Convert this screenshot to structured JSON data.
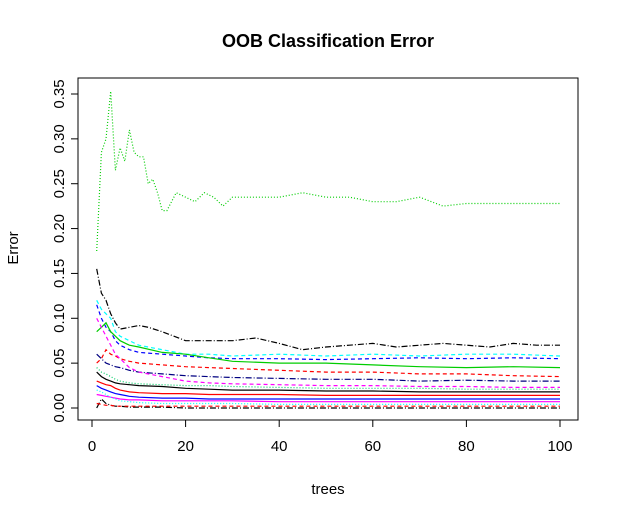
{
  "chart_data": {
    "type": "line",
    "title": "OOB Classification Error",
    "xlabel": "trees",
    "ylabel": "Error",
    "xlim": [
      0,
      100
    ],
    "ylim": [
      0,
      0.35
    ],
    "xticks": [
      0,
      20,
      40,
      60,
      80,
      100
    ],
    "yticks": [
      0.0,
      0.05,
      0.1,
      0.15,
      0.2,
      0.25,
      0.3,
      0.35
    ],
    "xtick_labels": [
      "0",
      "20",
      "40",
      "60",
      "80",
      "100"
    ],
    "ytick_labels": [
      "0.00",
      "0.05",
      "0.10",
      "0.15",
      "0.20",
      "0.25",
      "0.30",
      "0.35"
    ],
    "grid": false,
    "legend": "none",
    "series": [
      {
        "color": "#00cd00",
        "dash": "dotted",
        "x": [
          1,
          2,
          3,
          4,
          5,
          6,
          7,
          8,
          9,
          10,
          11,
          12,
          13,
          14,
          15,
          16,
          18,
          20,
          22,
          24,
          26,
          28,
          30,
          35,
          40,
          45,
          50,
          55,
          60,
          65,
          70,
          75,
          80,
          85,
          90,
          95,
          100
        ],
        "values": [
          0.175,
          0.285,
          0.3,
          0.353,
          0.265,
          0.29,
          0.275,
          0.31,
          0.285,
          0.28,
          0.28,
          0.25,
          0.255,
          0.24,
          0.22,
          0.22,
          0.24,
          0.235,
          0.23,
          0.24,
          0.235,
          0.225,
          0.235,
          0.235,
          0.235,
          0.24,
          0.235,
          0.235,
          0.23,
          0.23,
          0.235,
          0.225,
          0.228,
          0.228,
          0.228,
          0.228,
          0.228
        ]
      },
      {
        "color": "#000000",
        "dash": "dashdot",
        "x": [
          1,
          2,
          3,
          4,
          5,
          6,
          8,
          10,
          12,
          15,
          20,
          25,
          30,
          35,
          40,
          45,
          50,
          55,
          60,
          65,
          70,
          75,
          80,
          85,
          90,
          95,
          100
        ],
        "values": [
          0.155,
          0.128,
          0.12,
          0.105,
          0.095,
          0.088,
          0.09,
          0.092,
          0.09,
          0.085,
          0.075,
          0.075,
          0.075,
          0.078,
          0.072,
          0.065,
          0.068,
          0.07,
          0.072,
          0.068,
          0.07,
          0.072,
          0.07,
          0.068,
          0.072,
          0.07,
          0.07
        ]
      },
      {
        "color": "#00ffff",
        "dash": "dashed",
        "x": [
          1,
          2,
          3,
          4,
          5,
          6,
          8,
          10,
          15,
          20,
          25,
          30,
          40,
          50,
          60,
          70,
          80,
          90,
          100
        ],
        "values": [
          0.12,
          0.11,
          0.105,
          0.1,
          0.085,
          0.08,
          0.075,
          0.07,
          0.065,
          0.06,
          0.06,
          0.058,
          0.06,
          0.058,
          0.06,
          0.058,
          0.06,
          0.06,
          0.058
        ]
      },
      {
        "color": "#0000ff",
        "dash": "dashed",
        "x": [
          1,
          2,
          3,
          4,
          5,
          6,
          8,
          10,
          15,
          20,
          25,
          30,
          40,
          50,
          60,
          70,
          80,
          90,
          100
        ],
        "values": [
          0.115,
          0.1,
          0.09,
          0.085,
          0.075,
          0.07,
          0.065,
          0.062,
          0.06,
          0.058,
          0.056,
          0.055,
          0.055,
          0.054,
          0.055,
          0.056,
          0.055,
          0.056,
          0.055
        ]
      },
      {
        "color": "#00cd00",
        "dash": "solid",
        "x": [
          1,
          2,
          3,
          4,
          5,
          6,
          8,
          10,
          15,
          20,
          25,
          30,
          40,
          50,
          60,
          70,
          80,
          90,
          100
        ],
        "values": [
          0.085,
          0.09,
          0.095,
          0.085,
          0.08,
          0.075,
          0.07,
          0.068,
          0.062,
          0.06,
          0.056,
          0.052,
          0.05,
          0.05,
          0.048,
          0.046,
          0.045,
          0.046,
          0.045
        ]
      },
      {
        "color": "#ff0000",
        "dash": "dashed",
        "x": [
          1,
          2,
          3,
          4,
          5,
          6,
          8,
          10,
          15,
          20,
          25,
          30,
          40,
          50,
          60,
          70,
          80,
          90,
          100
        ],
        "values": [
          0.05,
          0.055,
          0.065,
          0.06,
          0.058,
          0.055,
          0.052,
          0.05,
          0.048,
          0.046,
          0.045,
          0.044,
          0.042,
          0.04,
          0.04,
          0.038,
          0.038,
          0.036,
          0.035
        ]
      },
      {
        "color": "#000080",
        "dash": "dashdot",
        "x": [
          1,
          2,
          3,
          4,
          5,
          6,
          8,
          10,
          15,
          20,
          25,
          30,
          40,
          50,
          60,
          70,
          80,
          90,
          100
        ],
        "values": [
          0.06,
          0.055,
          0.05,
          0.048,
          0.046,
          0.045,
          0.042,
          0.04,
          0.038,
          0.036,
          0.035,
          0.034,
          0.033,
          0.032,
          0.032,
          0.03,
          0.031,
          0.03,
          0.03
        ]
      },
      {
        "color": "#ff00ff",
        "dash": "dashed",
        "x": [
          1,
          2,
          3,
          4,
          5,
          6,
          8,
          10,
          15,
          20,
          25,
          30,
          40,
          50,
          60,
          70,
          80,
          90,
          100
        ],
        "values": [
          0.1,
          0.09,
          0.08,
          0.07,
          0.06,
          0.055,
          0.045,
          0.04,
          0.035,
          0.03,
          0.028,
          0.027,
          0.026,
          0.025,
          0.025,
          0.024,
          0.024,
          0.023,
          0.023
        ]
      },
      {
        "color": "#00cd66",
        "dash": "dotted",
        "x": [
          1,
          2,
          3,
          4,
          5,
          6,
          8,
          10,
          15,
          20,
          25,
          30,
          40,
          50,
          60,
          70,
          80,
          90,
          100
        ],
        "values": [
          0.045,
          0.04,
          0.038,
          0.035,
          0.032,
          0.03,
          0.028,
          0.027,
          0.026,
          0.025,
          0.025,
          0.024,
          0.023,
          0.022,
          0.022,
          0.022,
          0.021,
          0.021,
          0.021
        ]
      },
      {
        "color": "#000000",
        "dash": "solid",
        "x": [
          1,
          2,
          3,
          4,
          5,
          6,
          8,
          10,
          15,
          20,
          25,
          30,
          40,
          50,
          60,
          70,
          80,
          90,
          100
        ],
        "values": [
          0.04,
          0.035,
          0.032,
          0.03,
          0.028,
          0.027,
          0.026,
          0.025,
          0.024,
          0.022,
          0.021,
          0.02,
          0.02,
          0.019,
          0.019,
          0.018,
          0.018,
          0.018,
          0.018
        ]
      },
      {
        "color": "#ff0000",
        "dash": "solid",
        "x": [
          1,
          2,
          3,
          4,
          5,
          6,
          8,
          10,
          15,
          20,
          25,
          30,
          40,
          50,
          60,
          70,
          80,
          90,
          100
        ],
        "values": [
          0.03,
          0.028,
          0.026,
          0.025,
          0.022,
          0.02,
          0.018,
          0.017,
          0.016,
          0.016,
          0.015,
          0.015,
          0.015,
          0.014,
          0.014,
          0.014,
          0.014,
          0.014,
          0.014
        ]
      },
      {
        "color": "#0000ff",
        "dash": "solid",
        "x": [
          1,
          2,
          3,
          4,
          5,
          6,
          8,
          10,
          15,
          20,
          25,
          30,
          40,
          50,
          60,
          70,
          80,
          90,
          100
        ],
        "values": [
          0.025,
          0.022,
          0.02,
          0.018,
          0.016,
          0.015,
          0.013,
          0.012,
          0.011,
          0.011,
          0.01,
          0.01,
          0.01,
          0.01,
          0.01,
          0.01,
          0.01,
          0.01,
          0.01
        ]
      },
      {
        "color": "#ff00ff",
        "dash": "solid",
        "x": [
          1,
          2,
          3,
          4,
          5,
          6,
          8,
          10,
          15,
          20,
          25,
          30,
          40,
          50,
          60,
          70,
          80,
          90,
          100
        ],
        "values": [
          0.015,
          0.014,
          0.013,
          0.012,
          0.011,
          0.01,
          0.009,
          0.009,
          0.008,
          0.008,
          0.008,
          0.008,
          0.007,
          0.007,
          0.007,
          0.007,
          0.007,
          0.007,
          0.007
        ]
      },
      {
        "color": "#00ffff",
        "dash": "dotted",
        "x": [
          1,
          2,
          3,
          4,
          5,
          6,
          8,
          10,
          15,
          20,
          25,
          30,
          40,
          50,
          60,
          70,
          80,
          90,
          100
        ],
        "values": [
          0.02,
          0.018,
          0.015,
          0.012,
          0.01,
          0.008,
          0.007,
          0.006,
          0.005,
          0.005,
          0.005,
          0.005,
          0.004,
          0.004,
          0.004,
          0.004,
          0.004,
          0.004,
          0.004
        ]
      },
      {
        "color": "#000000",
        "dash": "dashdot",
        "x": [
          1,
          2,
          3,
          4,
          5,
          6,
          8,
          10,
          15,
          20,
          25,
          30,
          40,
          50,
          60,
          70,
          80,
          90,
          100
        ],
        "values": [
          0.0,
          0.01,
          0.005,
          0.003,
          0.002,
          0.002,
          0.001,
          0.001,
          0.001,
          0.0,
          0.0,
          0.0,
          0.0,
          0.0,
          0.0,
          0.0,
          0.0,
          0.0,
          0.0
        ]
      },
      {
        "color": "#ff0000",
        "dash": "dashed",
        "x": [
          1,
          2,
          3,
          4,
          5,
          6,
          8,
          10,
          15,
          20,
          25,
          30,
          40,
          50,
          60,
          70,
          80,
          90,
          100
        ],
        "values": [
          0.005,
          0.004,
          0.003,
          0.003,
          0.002,
          0.002,
          0.002,
          0.002,
          0.002,
          0.002,
          0.002,
          0.002,
          0.002,
          0.002,
          0.002,
          0.002,
          0.002,
          0.002,
          0.002
        ]
      }
    ]
  }
}
